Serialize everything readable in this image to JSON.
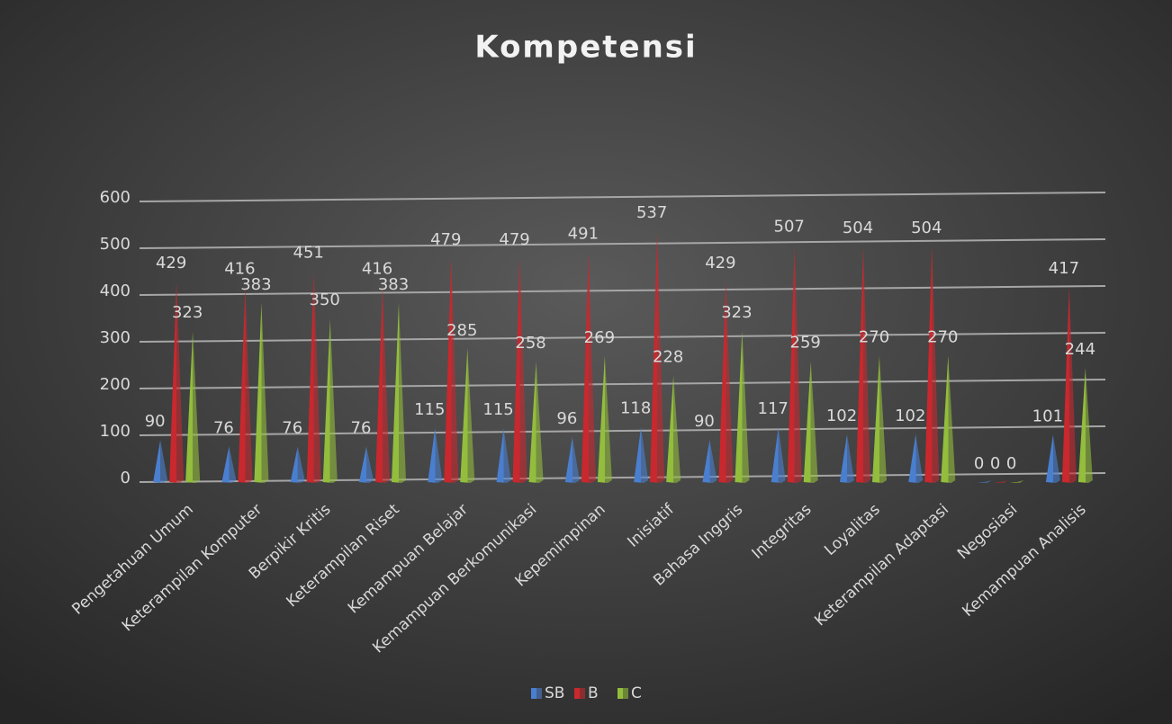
{
  "chart_data": {
    "type": "pyramid3d",
    "title": "Kompetensi",
    "categories": [
      "Pengetahuan Umum",
      "Keterampilan Komputer",
      "Berpikir Kritis",
      "Keterampilan Riset",
      "Kemampuan Belajar",
      "Kemampuan Berkomunikasi",
      "Kepemimpinan",
      "Inisiatif",
      "Bahasa Inggris",
      "Integritas",
      "Loyalitas",
      "Keterampilan Adaptasi",
      "Negosiasi",
      "Kemampuan Analisis"
    ],
    "series": [
      {
        "name": "SB",
        "color": "#4a7fd0",
        "values": [
          90,
          76,
          76,
          76,
          115,
          115,
          96,
          118,
          90,
          117,
          102,
          102,
          0,
          101
        ]
      },
      {
        "name": "B",
        "color": "#c8282e",
        "values": [
          429,
          416,
          451,
          416,
          479,
          479,
          491,
          537,
          429,
          507,
          504,
          504,
          0,
          417
        ]
      },
      {
        "name": "C",
        "color": "#93bd3c",
        "values": [
          323,
          383,
          350,
          383,
          285,
          258,
          269,
          228,
          323,
          259,
          270,
          270,
          0,
          244
        ]
      }
    ],
    "ylim": [
      0,
      600
    ],
    "yticks": [
      0,
      100,
      200,
      300,
      400,
      500,
      600
    ],
    "grid": true,
    "legend": "bottom"
  }
}
